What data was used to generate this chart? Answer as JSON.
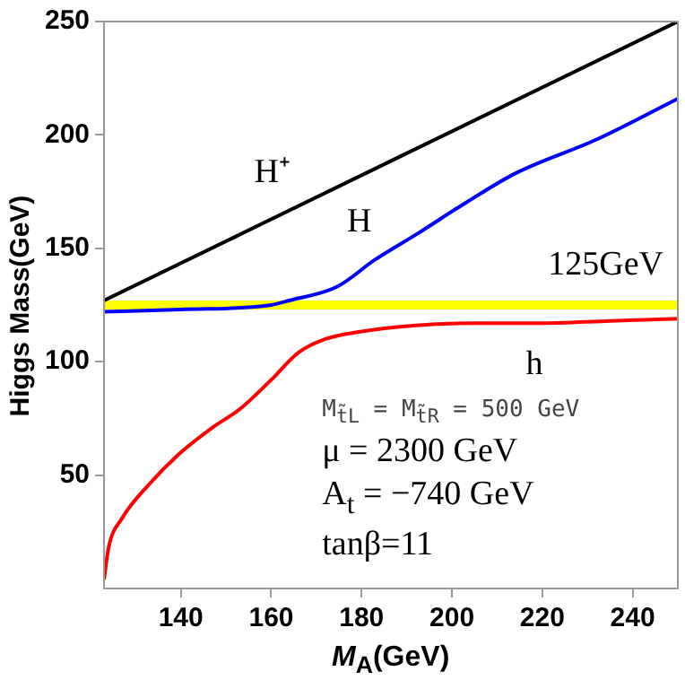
{
  "chart_data": {
    "type": "line",
    "xlabel": "M$_{A}$(GeV)",
    "ylabel": "Higgs Mass(GeV)",
    "xlim": [
      123,
      250
    ],
    "ylim": [
      0,
      250
    ],
    "xticks": [
      140,
      160,
      180,
      200,
      220,
      240
    ],
    "yticks": [
      50,
      100,
      150,
      200,
      250
    ],
    "grid": false,
    "legend": false,
    "marker": "none",
    "line_style": "solid",
    "series": [
      {
        "name": "H⁺",
        "color": "#000000",
        "x": [
          123,
          250
        ],
        "values": [
          127,
          250
        ]
      },
      {
        "name": "H",
        "color": "#0000ff",
        "x": [
          123,
          140,
          160,
          164,
          174.5,
          183,
          192.8,
          203,
          214,
          232,
          250
        ],
        "values": [
          122,
          123,
          125,
          127,
          133,
          145,
          157,
          170,
          183,
          198,
          216
        ]
      },
      {
        "name": "h",
        "color": "#ff0000",
        "x": [
          123,
          124,
          127,
          133,
          140,
          147,
          153,
          160,
          166,
          172,
          179,
          192,
          205,
          219,
          235,
          250
        ],
        "values": [
          4,
          18,
          31,
          46,
          60,
          71,
          79,
          92,
          104,
          110,
          113,
          116,
          117,
          117,
          118,
          119
        ]
      }
    ],
    "bands": [
      {
        "axis": "y",
        "from": 123,
        "to": 127,
        "label": "125GeV",
        "color": "#ffff00"
      }
    ],
    "annotations": [
      "M$_{t̃L}$ = M$_{t̃R}$ = 500 GeV",
      "μ = 2300 GeV",
      "A$_{t}$ = −740 GeV",
      "tanβ=11"
    ]
  }
}
